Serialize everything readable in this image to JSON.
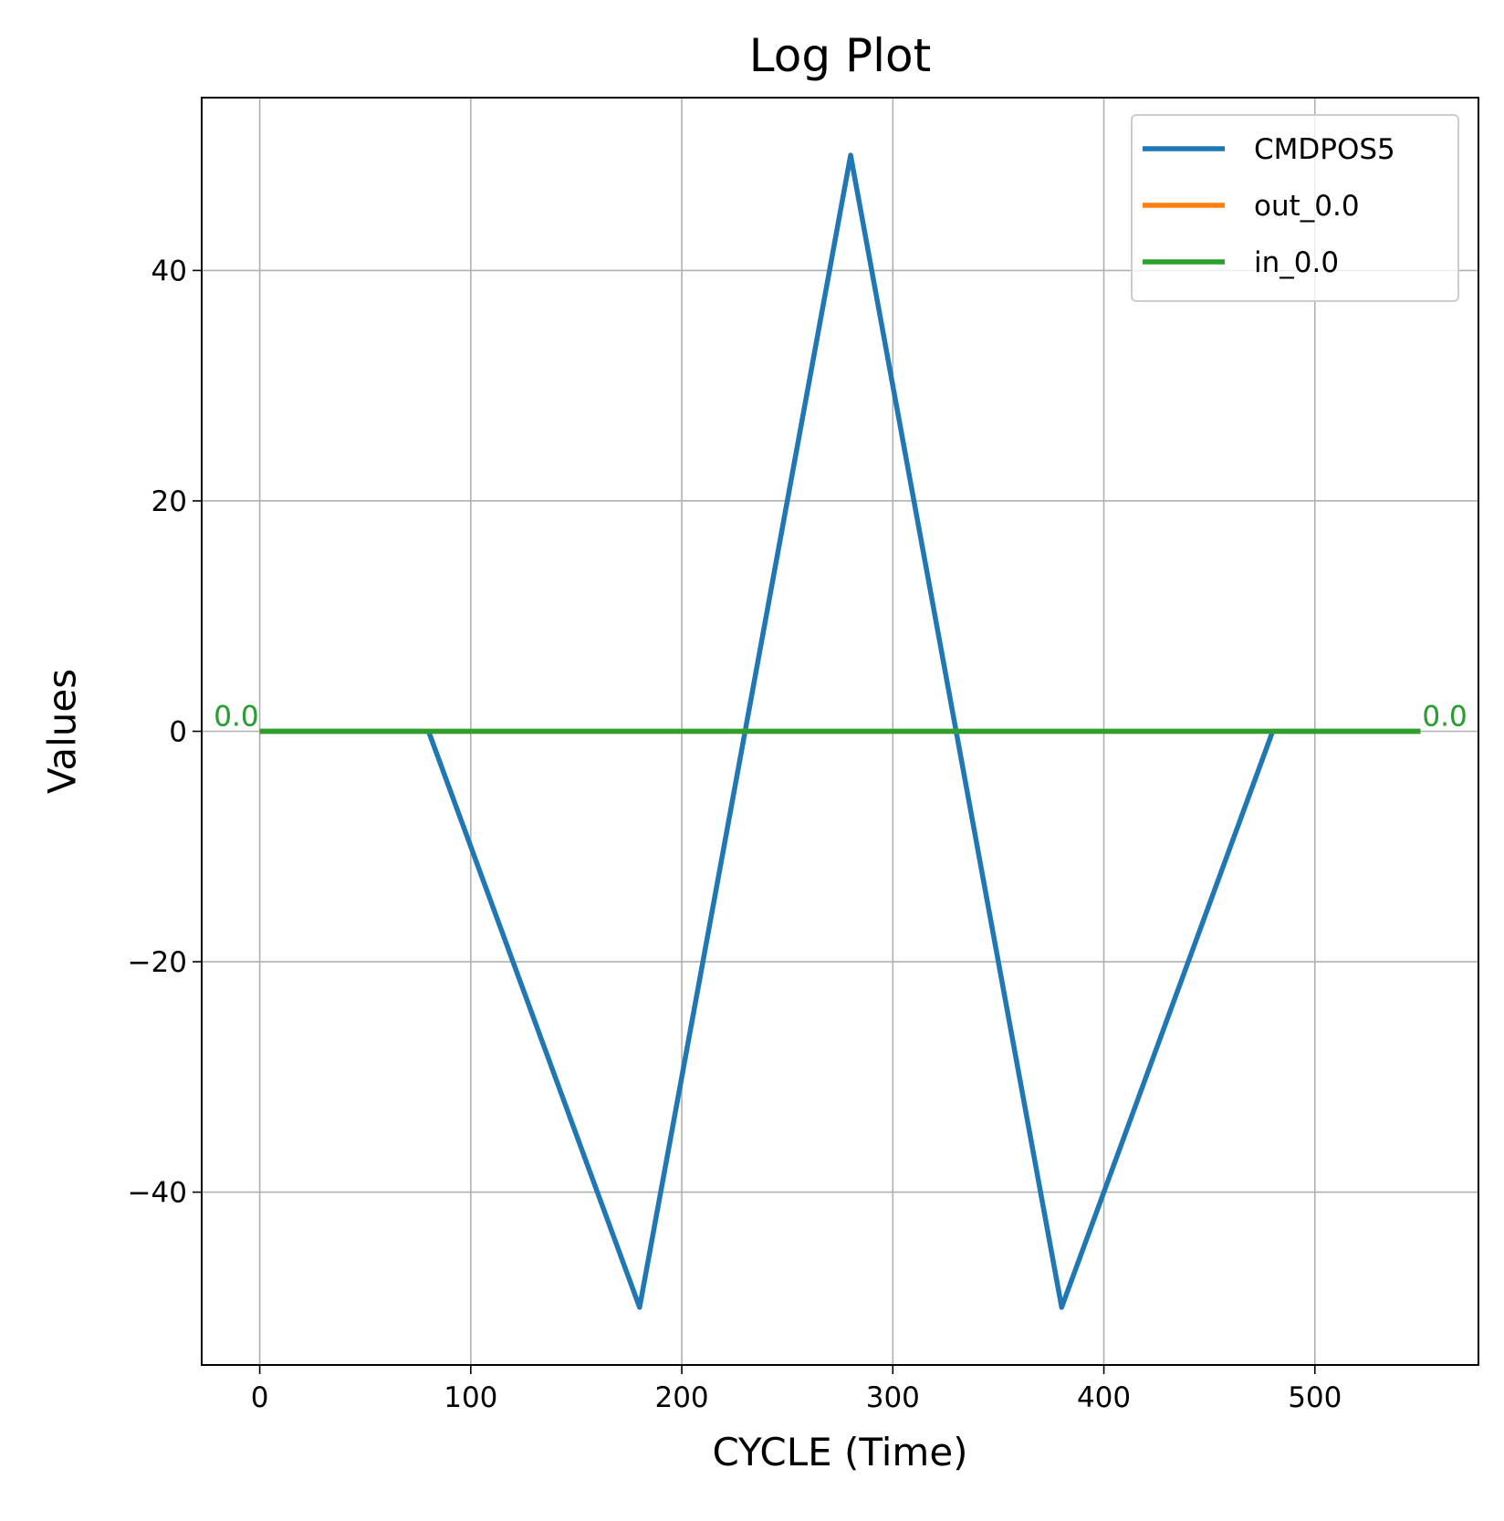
{
  "chart_data": {
    "type": "line",
    "title": "Log Plot",
    "xlabel": "CYCLE (Time)",
    "ylabel": "Values",
    "xlim": [
      -27.5,
      577.5
    ],
    "ylim": [
      -55,
      55
    ],
    "xticks": [
      0,
      100,
      200,
      300,
      400,
      500
    ],
    "yticks": [
      -40,
      -20,
      0,
      20,
      40
    ],
    "ytick_labels": [
      "−40",
      "−20",
      "0",
      "20",
      "40"
    ],
    "grid": true,
    "legend_position": "top-right",
    "series": [
      {
        "name": "CMDPOS5",
        "color": "#1f77b4",
        "x": [
          0,
          80,
          180,
          280,
          380,
          480,
          550
        ],
        "y": [
          0,
          0,
          -50,
          50,
          -50,
          0,
          0
        ]
      },
      {
        "name": "out_0.0",
        "color": "#ff7f0e",
        "x": [
          0,
          550
        ],
        "y": [
          0,
          0
        ]
      },
      {
        "name": "in_0.0",
        "color": "#2ca02c",
        "x": [
          0,
          550
        ],
        "y": [
          0,
          0
        ]
      }
    ],
    "annotations": [
      {
        "text": "0.0",
        "x": 0,
        "y": 0,
        "color": "#1f77b4",
        "side": "start"
      },
      {
        "text": "0.0",
        "x": 0,
        "y": 0,
        "color": "#2ca02c",
        "side": "start"
      },
      {
        "text": "0.0",
        "x": 550,
        "y": 0,
        "color": "#1f77b4",
        "side": "end"
      },
      {
        "text": "0.0",
        "x": 550,
        "y": 0,
        "color": "#2ca02c",
        "side": "end"
      }
    ]
  }
}
